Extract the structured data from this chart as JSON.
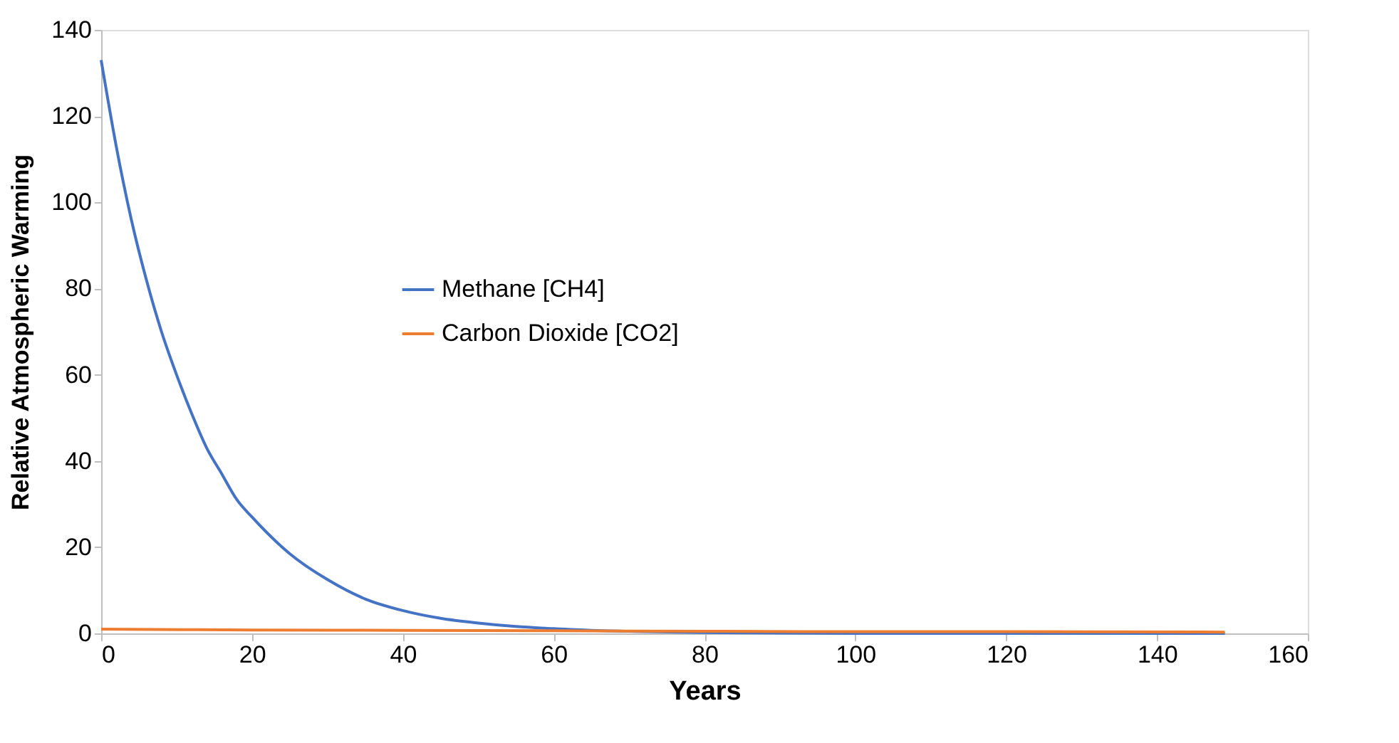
{
  "chart_data": {
    "type": "line",
    "xlabel": "Years",
    "ylabel": "Relative Atmospheric Warming",
    "xlim": [
      0,
      160
    ],
    "xticks": [
      0,
      20,
      40,
      60,
      80,
      100,
      120,
      140,
      160
    ],
    "ylim": [
      0,
      140
    ],
    "yticks": [
      0,
      20,
      40,
      60,
      80,
      100,
      120,
      140
    ],
    "grid": false,
    "legend": "left",
    "marker": "none",
    "line_style": "solid",
    "series": [
      {
        "name": "Methane [CH4]",
        "color": "#4472c4",
        "x": [
          0,
          2,
          4,
          6,
          8,
          10,
          12,
          14,
          16,
          18,
          20,
          25,
          30,
          35,
          40,
          45,
          50,
          55,
          60,
          65,
          70,
          80,
          90,
          100,
          120,
          149
        ],
        "values": [
          133,
          113,
          96,
          82,
          70,
          60,
          51,
          43,
          37,
          31,
          27,
          18.5,
          12.5,
          8,
          5.3,
          3.5,
          2.4,
          1.6,
          1.1,
          0.7,
          0.5,
          0.2,
          0.1,
          0,
          0,
          0
        ]
      },
      {
        "name": "Carbon Dioxide [CO2]",
        "color": "#ed7d31",
        "x": [
          0,
          20,
          40,
          60,
          80,
          100,
          120,
          149
        ],
        "values": [
          1,
          0.8,
          0.7,
          0.6,
          0.5,
          0.4,
          0.4,
          0.3
        ]
      }
    ]
  }
}
